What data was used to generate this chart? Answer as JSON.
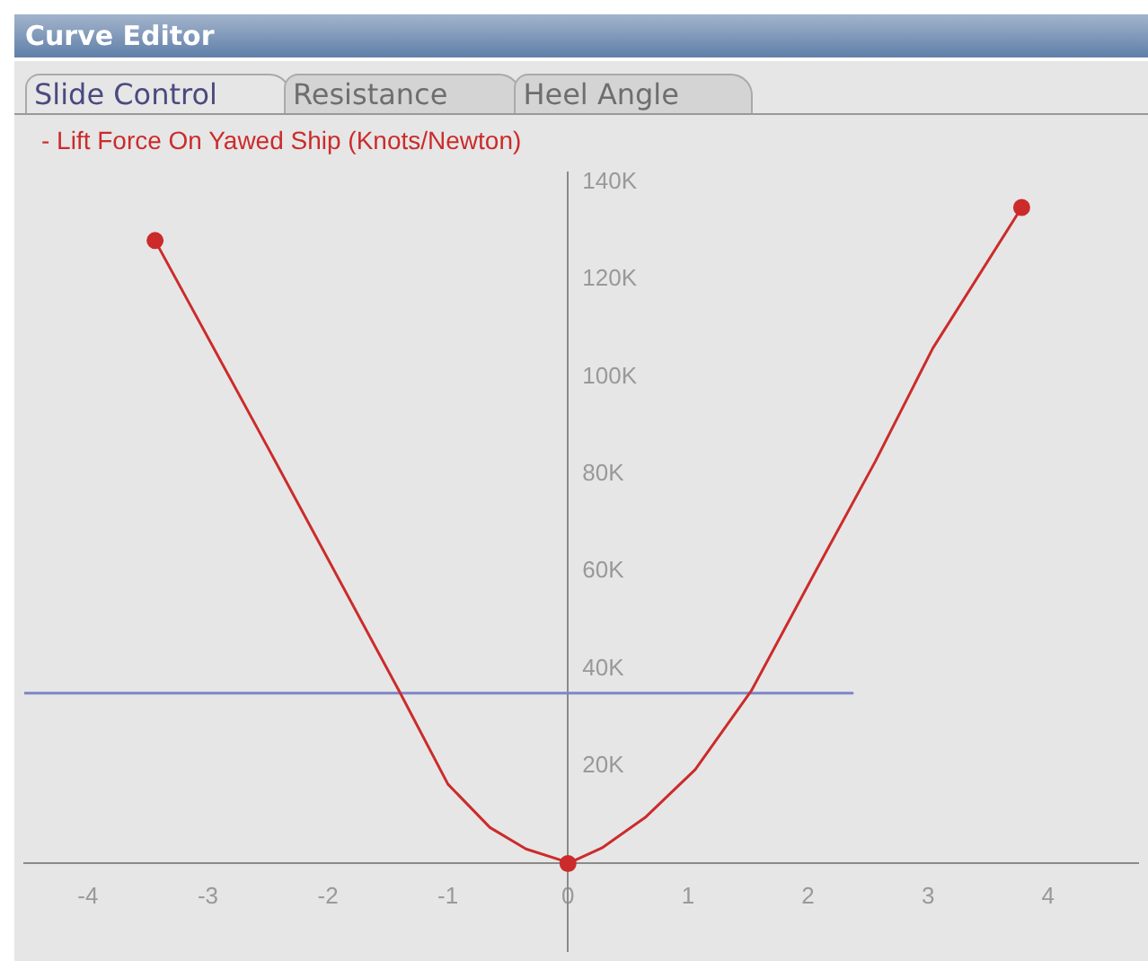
{
  "chart_data": {
    "type": "line",
    "title": "Curve Editor",
    "annotations": [
      "Slide Control",
      "Resistance",
      "Heel Angle"
    ],
    "xlim": [
      -4.53,
      4.75
    ],
    "xticks": [
      -4,
      -3,
      -2,
      -1,
      0,
      1,
      2,
      3,
      4
    ],
    "ylim": [
      -18000,
      142000
    ],
    "yticks": [
      {
        "value": 20000,
        "label": "20K"
      },
      {
        "value": 40000,
        "label": "40K"
      },
      {
        "value": 60000,
        "label": "60K"
      },
      {
        "value": 80000,
        "label": "80K"
      },
      {
        "value": 100000,
        "label": "100K"
      },
      {
        "value": 120000,
        "label": "120K"
      },
      {
        "value": 140000,
        "label": "140K"
      }
    ],
    "grid": false,
    "legend": "top left",
    "series": [
      {
        "name": "- Lift Force On Yawed Ship (Knots/Newton)",
        "type": "line",
        "color": "#cc2b2b",
        "marker": "none",
        "x": [
          -3.44,
          -2.49,
          -1.41,
          -1.0,
          -0.65,
          -0.35,
          -0.06,
          0.0,
          0.29,
          0.65,
          1.06,
          1.53,
          2.07,
          2.56,
          3.04,
          3.78
        ],
        "values": [
          128000,
          85000,
          35600,
          16300,
          7400,
          3000,
          700,
          0,
          3300,
          9600,
          19300,
          35600,
          60400,
          82600,
          105900,
          134800
        ]
      },
      {
        "type": "scatter",
        "color": "#cc2b2b",
        "marker": "circle",
        "x": [
          -3.44,
          0.0,
          3.78
        ],
        "values": [
          128000,
          0,
          134800
        ]
      },
      {
        "type": "line",
        "color": "#7f86c8",
        "marker": "none",
        "x": [
          -4.53,
          2.37
        ],
        "values": [
          35000,
          35000
        ]
      }
    ]
  }
}
